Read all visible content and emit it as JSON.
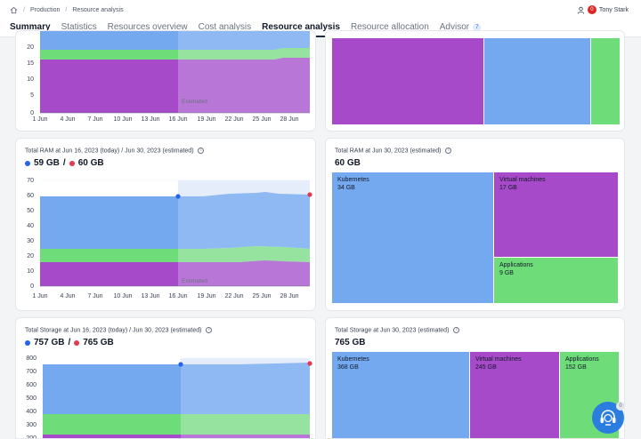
{
  "breadcrumb": {
    "items": [
      "Production",
      "Resource analysis"
    ]
  },
  "user": {
    "notifications": "0",
    "name": "Tony Stark"
  },
  "tabs": [
    {
      "label": "Summary"
    },
    {
      "label": "Statistics"
    },
    {
      "label": "Resources overview"
    },
    {
      "label": "Cost analysis"
    },
    {
      "label": "Resource analysis"
    },
    {
      "label": "Resource allocation"
    },
    {
      "label": "Advisor",
      "count": "7"
    }
  ],
  "colors": {
    "purple": "#a64ac9",
    "green": "#6fdc7a",
    "blue": "#74a9f0",
    "today": "#2563eb",
    "estimated": "#e53950"
  },
  "cpu_chart": {
    "x_ticks": [
      "1 Jun",
      "4 Jun",
      "7 Jun",
      "10 Jun",
      "13 Jun",
      "16 Jun",
      "19 Jun",
      "22 Jun",
      "25 Jun",
      "28 Jun"
    ],
    "y_ticks": [
      "0",
      "5",
      "10",
      "15",
      "20"
    ],
    "estimated_label": "Estimated"
  },
  "ram": {
    "label_today": "Total RAM at Jun 16, 2023 (today)",
    "label_sep": "/",
    "label_est": "Jun 30, 2023 (estimated)",
    "value_today": "59 GB",
    "value_est": "60 GB",
    "chart": {
      "type": "area",
      "x_ticks": [
        "1 Jun",
        "4 Jun",
        "7 Jun",
        "10 Jun",
        "13 Jun",
        "16 Jun",
        "19 Jun",
        "22 Jun",
        "25 Jun",
        "28 Jun"
      ],
      "y_ticks": [
        "0",
        "10",
        "20",
        "30",
        "40",
        "50",
        "60",
        "70"
      ],
      "estimated_label": "Estimated"
    },
    "treemap": {
      "label": "Total RAM at Jun 30, 2023 (estimated)",
      "value": "60 GB",
      "blocks": [
        {
          "name": "Kubernetes",
          "value": "34 GB"
        },
        {
          "name": "Virtual machines",
          "value": "17 GB"
        },
        {
          "name": "Applications",
          "value": "9 GB"
        }
      ]
    }
  },
  "storage": {
    "label_today": "Total Storage at Jun 16, 2023 (today)",
    "label_sep": "/",
    "label_est": "Jun 30, 2023 (estimated)",
    "value_today": "757 GB",
    "value_est": "765 GB",
    "chart": {
      "y_ticks": [
        "200",
        "300",
        "400",
        "500",
        "600",
        "700",
        "800"
      ]
    },
    "treemap": {
      "label": "Total Storage at Jun 30, 2023 (estimated)",
      "value": "765 GB",
      "blocks": [
        {
          "name": "Kubernetes",
          "value": "368 GB"
        },
        {
          "name": "Virtual machines",
          "value": "245 GB"
        },
        {
          "name": "Applications",
          "value": "152 GB"
        }
      ]
    }
  },
  "support": {
    "count": "0"
  }
}
